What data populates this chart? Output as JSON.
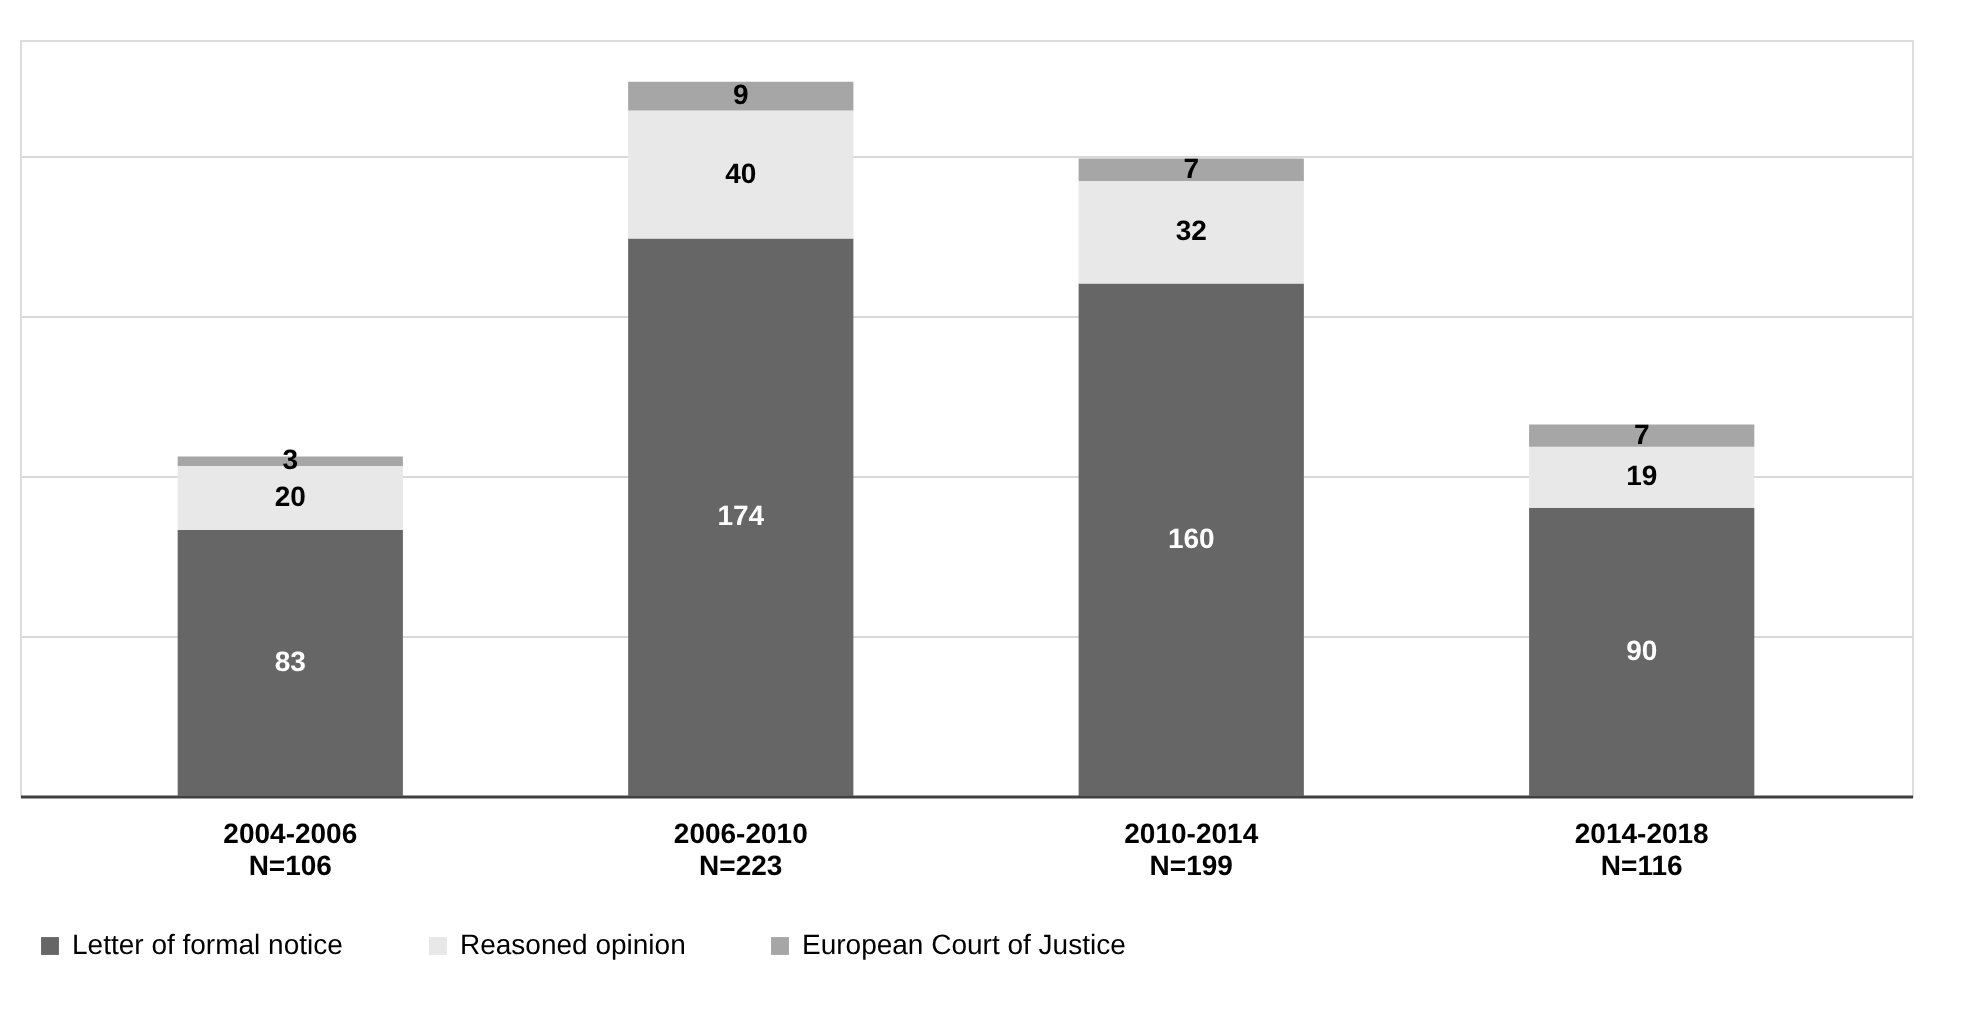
{
  "chart_data": {
    "type": "bar",
    "stacked": true,
    "categories": [
      "2004-2006\nN=106",
      "2006-2010\nN=223",
      "2010-2014\nN=199",
      "2014-2018\nN=116"
    ],
    "series": [
      {
        "name": "Letter of formal notice",
        "color": "#666666",
        "values": [
          83,
          174,
          160,
          90
        ]
      },
      {
        "name": "Reasoned opinion",
        "color": "#e8e8e8",
        "values": [
          20,
          40,
          32,
          19
        ]
      },
      {
        "name": "European Court of Justice",
        "color": "#a6a6a6",
        "values": [
          3,
          9,
          7,
          7
        ]
      }
    ],
    "ylim": [
      0,
      236
    ],
    "yticks": [
      {
        "value": 0,
        "label": null
      },
      {
        "value": 50,
        "label": null
      },
      {
        "value": 100,
        "label": null
      },
      {
        "value": 150,
        "label": null
      },
      {
        "value": 200,
        "label": null
      }
    ],
    "grid": "y",
    "legend": "bottom",
    "data_labels": true,
    "tick_labels": "x"
  }
}
